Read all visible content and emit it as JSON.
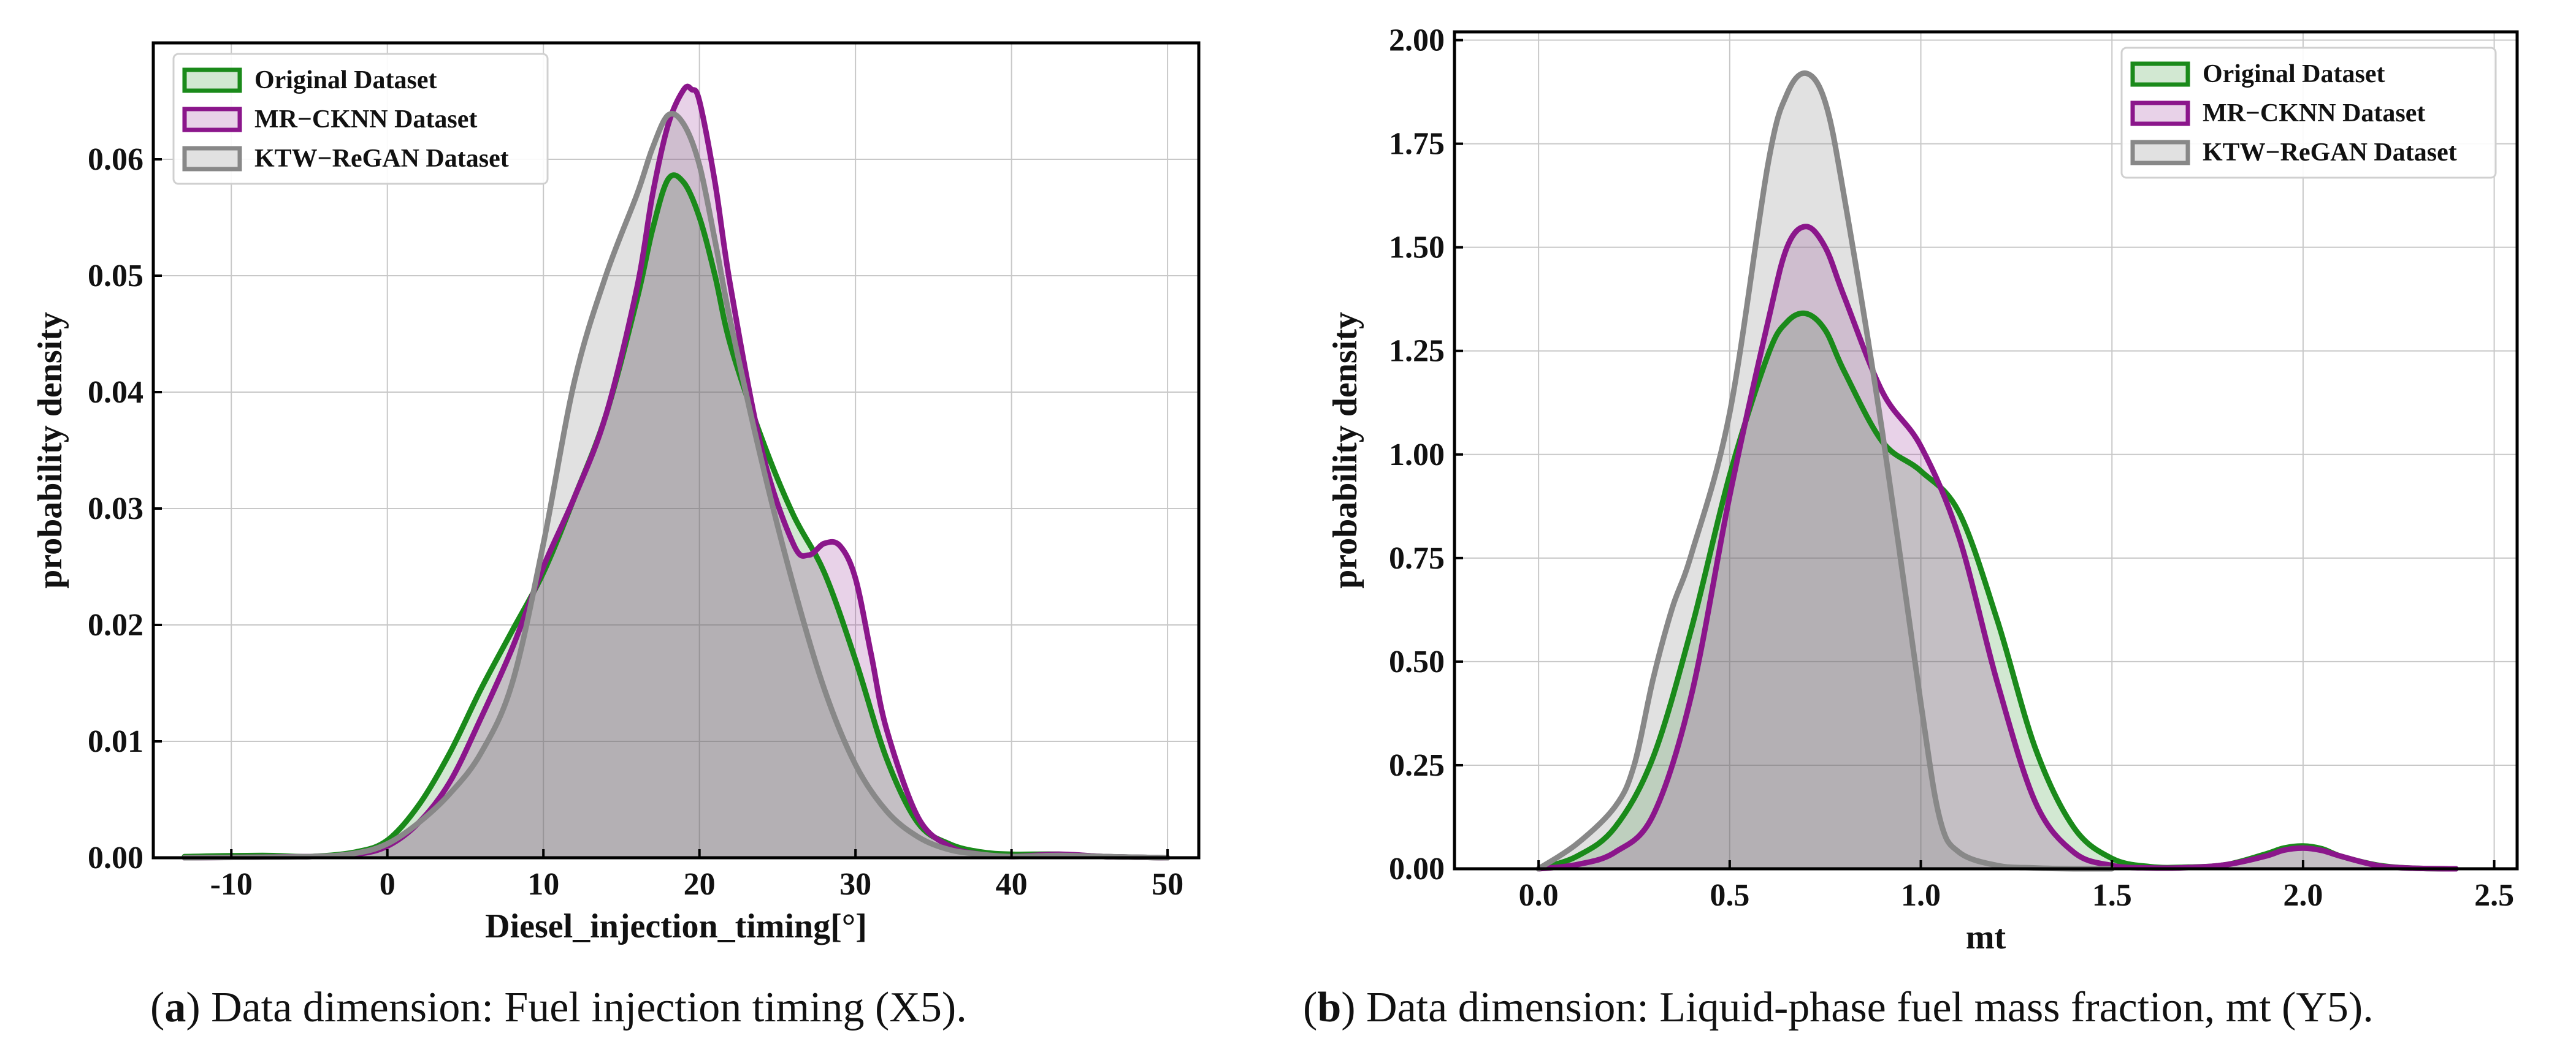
{
  "colors": {
    "original": "#1a8a1a",
    "mrcknn": "#8b168b",
    "ktw": "#888888",
    "original_fill": "rgba(30,140,30,0.2)",
    "mrcknn_fill": "rgba(140,30,140,0.2)",
    "ktw_fill": "rgba(130,130,130,0.24)"
  },
  "captions": [
    {
      "letter": "a",
      "text": ") Data dimension: Fuel injection timing (X5)."
    },
    {
      "letter": "b",
      "text": ") Data dimension: Liquid-phase fuel mass fraction, mt (Y5)."
    }
  ],
  "chart_data": [
    {
      "type": "area",
      "title": "",
      "xlabel": "Diesel_injection_timing[°]",
      "ylabel": "probability density",
      "xlim": [
        -15,
        52
      ],
      "ylim": [
        0,
        0.07
      ],
      "xticks": [
        -10,
        0,
        10,
        20,
        30,
        40,
        50
      ],
      "xtick_labels": [
        "-10",
        "0",
        "10",
        "20",
        "30",
        "40",
        "50"
      ],
      "yticks": [
        0,
        0.01,
        0.02,
        0.03,
        0.04,
        0.05,
        0.06
      ],
      "ytick_labels": [
        "0.00",
        "0.01",
        "0.02",
        "0.03",
        "0.04",
        "0.05",
        "0.06"
      ],
      "grid": true,
      "legend_position": "top-left",
      "series": [
        {
          "name": "Original Dataset",
          "key": "original",
          "x": [
            -13,
            -8,
            -5,
            -2,
            0,
            2,
            4,
            6,
            8,
            10,
            12,
            14,
            16,
            17,
            18,
            19,
            20,
            21,
            22,
            24,
            26,
            28,
            30,
            32,
            34,
            36,
            38,
            40,
            43,
            46,
            50
          ],
          "y": [
            0.0001,
            0.0002,
            0.0001,
            0.0005,
            0.0015,
            0.0045,
            0.009,
            0.0145,
            0.0195,
            0.0245,
            0.031,
            0.038,
            0.048,
            0.054,
            0.0583,
            0.058,
            0.055,
            0.05,
            0.044,
            0.036,
            0.0295,
            0.0245,
            0.017,
            0.0085,
            0.003,
            0.0012,
            0.0005,
            0.0003,
            0.0003,
            0.0001,
            0.0
          ]
        },
        {
          "name": "MR−CKNN Dataset",
          "key": "mrcknn",
          "x": [
            -13,
            -5,
            -2,
            0,
            2,
            4,
            6,
            8,
            10,
            12,
            14,
            16,
            17,
            18,
            19,
            19.5,
            20,
            21,
            22,
            24,
            26,
            27,
            28,
            29,
            30,
            31,
            32,
            34,
            36,
            38,
            40,
            43,
            46,
            50
          ],
          "y": [
            0.0,
            0.0001,
            0.0003,
            0.001,
            0.003,
            0.0065,
            0.012,
            0.018,
            0.025,
            0.031,
            0.038,
            0.049,
            0.057,
            0.063,
            0.066,
            0.066,
            0.065,
            0.058,
            0.049,
            0.035,
            0.027,
            0.026,
            0.027,
            0.0268,
            0.024,
            0.0175,
            0.011,
            0.0035,
            0.001,
            0.0003,
            0.0001,
            0.0003,
            0.0001,
            0.0
          ]
        },
        {
          "name": "KTW−ReGAN Dataset",
          "key": "ktw",
          "x": [
            -13,
            -5,
            -2,
            0,
            2,
            4,
            6,
            8,
            10,
            12,
            14,
            16,
            17,
            18,
            19,
            20,
            21,
            22,
            24,
            26,
            28,
            30,
            32,
            34,
            36,
            38,
            40,
            43,
            46,
            50
          ],
          "y": [
            0.0,
            0.0001,
            0.0004,
            0.0012,
            0.003,
            0.0055,
            0.009,
            0.015,
            0.027,
            0.041,
            0.05,
            0.057,
            0.061,
            0.0638,
            0.063,
            0.0595,
            0.053,
            0.046,
            0.034,
            0.0235,
            0.0145,
            0.008,
            0.004,
            0.0018,
            0.0007,
            0.0003,
            0.0001,
            0.0002,
            0.0001,
            0.0
          ]
        }
      ]
    },
    {
      "type": "area",
      "title": "",
      "xlabel": "mt",
      "ylabel": "probability density",
      "xlim": [
        -0.22,
        2.56
      ],
      "ylim": [
        0,
        2.02
      ],
      "xticks": [
        0.0,
        0.5,
        1.0,
        1.5,
        2.0,
        2.5
      ],
      "xtick_labels": [
        "0.0",
        "0.5",
        "1.0",
        "1.5",
        "2.0",
        "2.5"
      ],
      "yticks": [
        0,
        0.25,
        0.5,
        0.75,
        1.0,
        1.25,
        1.5,
        1.75,
        2.0
      ],
      "ytick_labels": [
        "0.00",
        "0.25",
        "0.50",
        "0.75",
        "1.00",
        "1.25",
        "1.50",
        "1.75",
        "2.00"
      ],
      "grid": true,
      "legend_position": "top-right",
      "series": [
        {
          "name": "Original Dataset",
          "key": "original",
          "x": [
            0.0,
            0.1,
            0.2,
            0.3,
            0.4,
            0.5,
            0.6,
            0.65,
            0.7,
            0.75,
            0.8,
            0.9,
            1.0,
            1.1,
            1.2,
            1.3,
            1.4,
            1.5,
            1.6,
            1.7,
            1.8,
            1.9,
            1.95,
            2.0,
            2.05,
            2.1,
            2.2,
            2.3,
            2.4
          ],
          "y": [
            0.0,
            0.03,
            0.1,
            0.27,
            0.58,
            0.95,
            1.24,
            1.32,
            1.34,
            1.3,
            1.2,
            1.03,
            0.96,
            0.86,
            0.6,
            0.29,
            0.1,
            0.025,
            0.005,
            0.004,
            0.01,
            0.035,
            0.05,
            0.055,
            0.048,
            0.03,
            0.008,
            0.001,
            0.0
          ]
        },
        {
          "name": "MR−CKNN Dataset",
          "key": "mrcknn",
          "x": [
            0.0,
            0.1,
            0.2,
            0.3,
            0.4,
            0.5,
            0.6,
            0.65,
            0.7,
            0.75,
            0.8,
            0.9,
            1.0,
            1.1,
            1.2,
            1.3,
            1.4,
            1.5,
            1.6,
            1.7,
            1.8,
            1.9,
            1.95,
            2.0,
            2.05,
            2.1,
            2.2,
            2.3,
            2.4
          ],
          "y": [
            0.0,
            0.01,
            0.04,
            0.13,
            0.42,
            0.9,
            1.32,
            1.5,
            1.55,
            1.5,
            1.38,
            1.15,
            1.02,
            0.8,
            0.45,
            0.16,
            0.04,
            0.008,
            0.002,
            0.003,
            0.01,
            0.03,
            0.045,
            0.05,
            0.044,
            0.03,
            0.007,
            0.001,
            0.0
          ]
        },
        {
          "name": "KTW−ReGAN Dataset",
          "key": "ktw",
          "x": [
            0.0,
            0.1,
            0.2,
            0.25,
            0.3,
            0.35,
            0.4,
            0.5,
            0.6,
            0.65,
            0.7,
            0.75,
            0.8,
            0.9,
            1.0,
            1.05,
            1.1,
            1.2,
            1.3,
            1.4,
            1.5
          ],
          "y": [
            0.0,
            0.06,
            0.15,
            0.25,
            0.46,
            0.63,
            0.76,
            1.1,
            1.7,
            1.87,
            1.92,
            1.85,
            1.62,
            1.05,
            0.4,
            0.12,
            0.04,
            0.008,
            0.002,
            0.0,
            0.0
          ]
        }
      ]
    }
  ]
}
